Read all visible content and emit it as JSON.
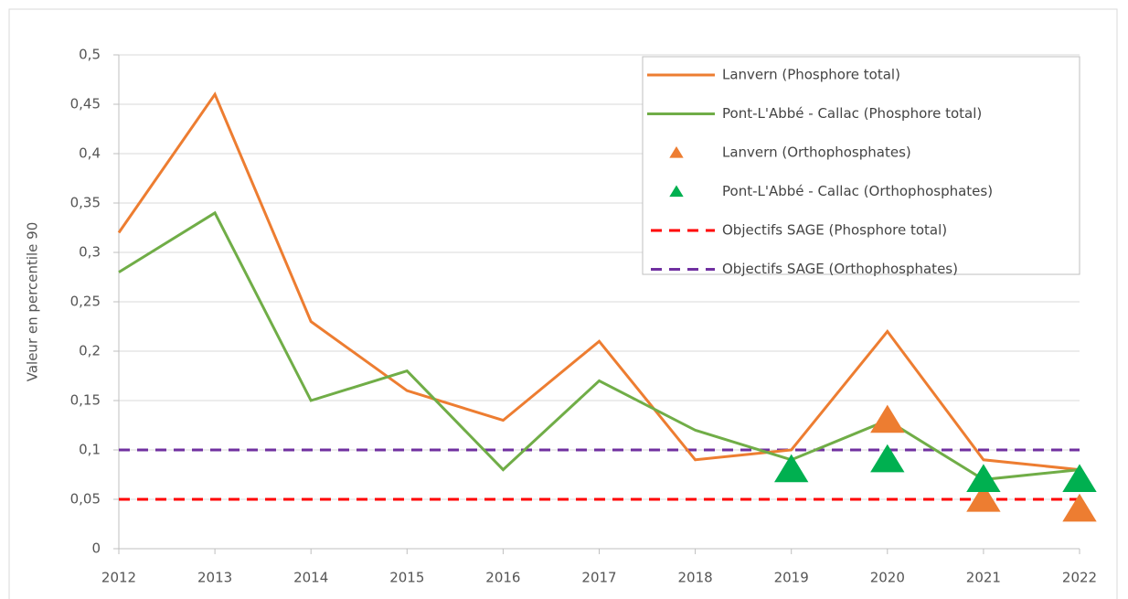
{
  "chart_data": {
    "type": "line",
    "y_label": "Valeur en percentile 90",
    "x": [
      2012,
      2013,
      2014,
      2015,
      2016,
      2017,
      2018,
      2019,
      2020,
      2021,
      2022
    ],
    "xlim": [
      2012,
      2022
    ],
    "xticks": [
      2012,
      2013,
      2014,
      2015,
      2016,
      2017,
      2018,
      2019,
      2020,
      2021,
      2022
    ],
    "ylim": [
      0,
      0.5
    ],
    "yticks": [
      0,
      {
        "value": 0.05,
        "label": "0,05"
      },
      {
        "value": 0.1,
        "label": "0,1"
      },
      {
        "value": 0.15,
        "label": "0,15"
      },
      {
        "value": 0.2,
        "label": "0,2"
      },
      {
        "value": 0.25,
        "label": "0,25"
      },
      {
        "value": 0.3,
        "label": "0,3"
      },
      {
        "value": 0.35,
        "label": "0,35"
      },
      {
        "value": 0.4,
        "label": "0,4"
      },
      {
        "value": 0.45,
        "label": "0,45"
      },
      {
        "value": 0.5,
        "label": "0,5"
      }
    ],
    "grid": true,
    "legend": "top-right",
    "series": [
      {
        "name": "Lanvern (Phosphore total)",
        "color": "#ed7d31",
        "mark": "line",
        "values": [
          0.32,
          0.46,
          0.23,
          0.16,
          0.13,
          0.21,
          0.09,
          0.1,
          0.22,
          0.09,
          0.08
        ]
      },
      {
        "name": "Pont-L'Abbé - Callac (Phosphore total)",
        "color": "#70ad47",
        "mark": "line",
        "values": [
          0.28,
          0.34,
          0.15,
          0.18,
          0.08,
          0.17,
          0.12,
          0.09,
          0.13,
          0.07,
          0.08
        ]
      },
      {
        "name": "Lanvern (Orthophosphates)",
        "color": "#ed7d31",
        "mark": "triangle",
        "values": [
          null,
          null,
          null,
          null,
          null,
          null,
          null,
          null,
          0.13,
          0.05,
          0.04
        ]
      },
      {
        "name": "Pont-L'Abbé - Callac (Orthophosphates)",
        "color": "#00b050",
        "mark": "triangle",
        "values": [
          null,
          null,
          null,
          null,
          null,
          null,
          null,
          0.08,
          0.09,
          0.07,
          0.07
        ]
      },
      {
        "name": "Objectifs SAGE (Phosphore total)",
        "color": "#ff0000",
        "mark": "dashed",
        "values": [
          0.05,
          0.05,
          0.05,
          0.05,
          0.05,
          0.05,
          0.05,
          0.05,
          0.05,
          0.05,
          0.05
        ]
      },
      {
        "name": "Objectifs SAGE (Orthophosphates)",
        "color": "#7030a0",
        "mark": "dashed",
        "values": [
          0.1,
          0.1,
          0.1,
          0.1,
          0.1,
          0.1,
          0.1,
          0.1,
          0.1,
          0.1,
          0.1
        ]
      }
    ]
  }
}
